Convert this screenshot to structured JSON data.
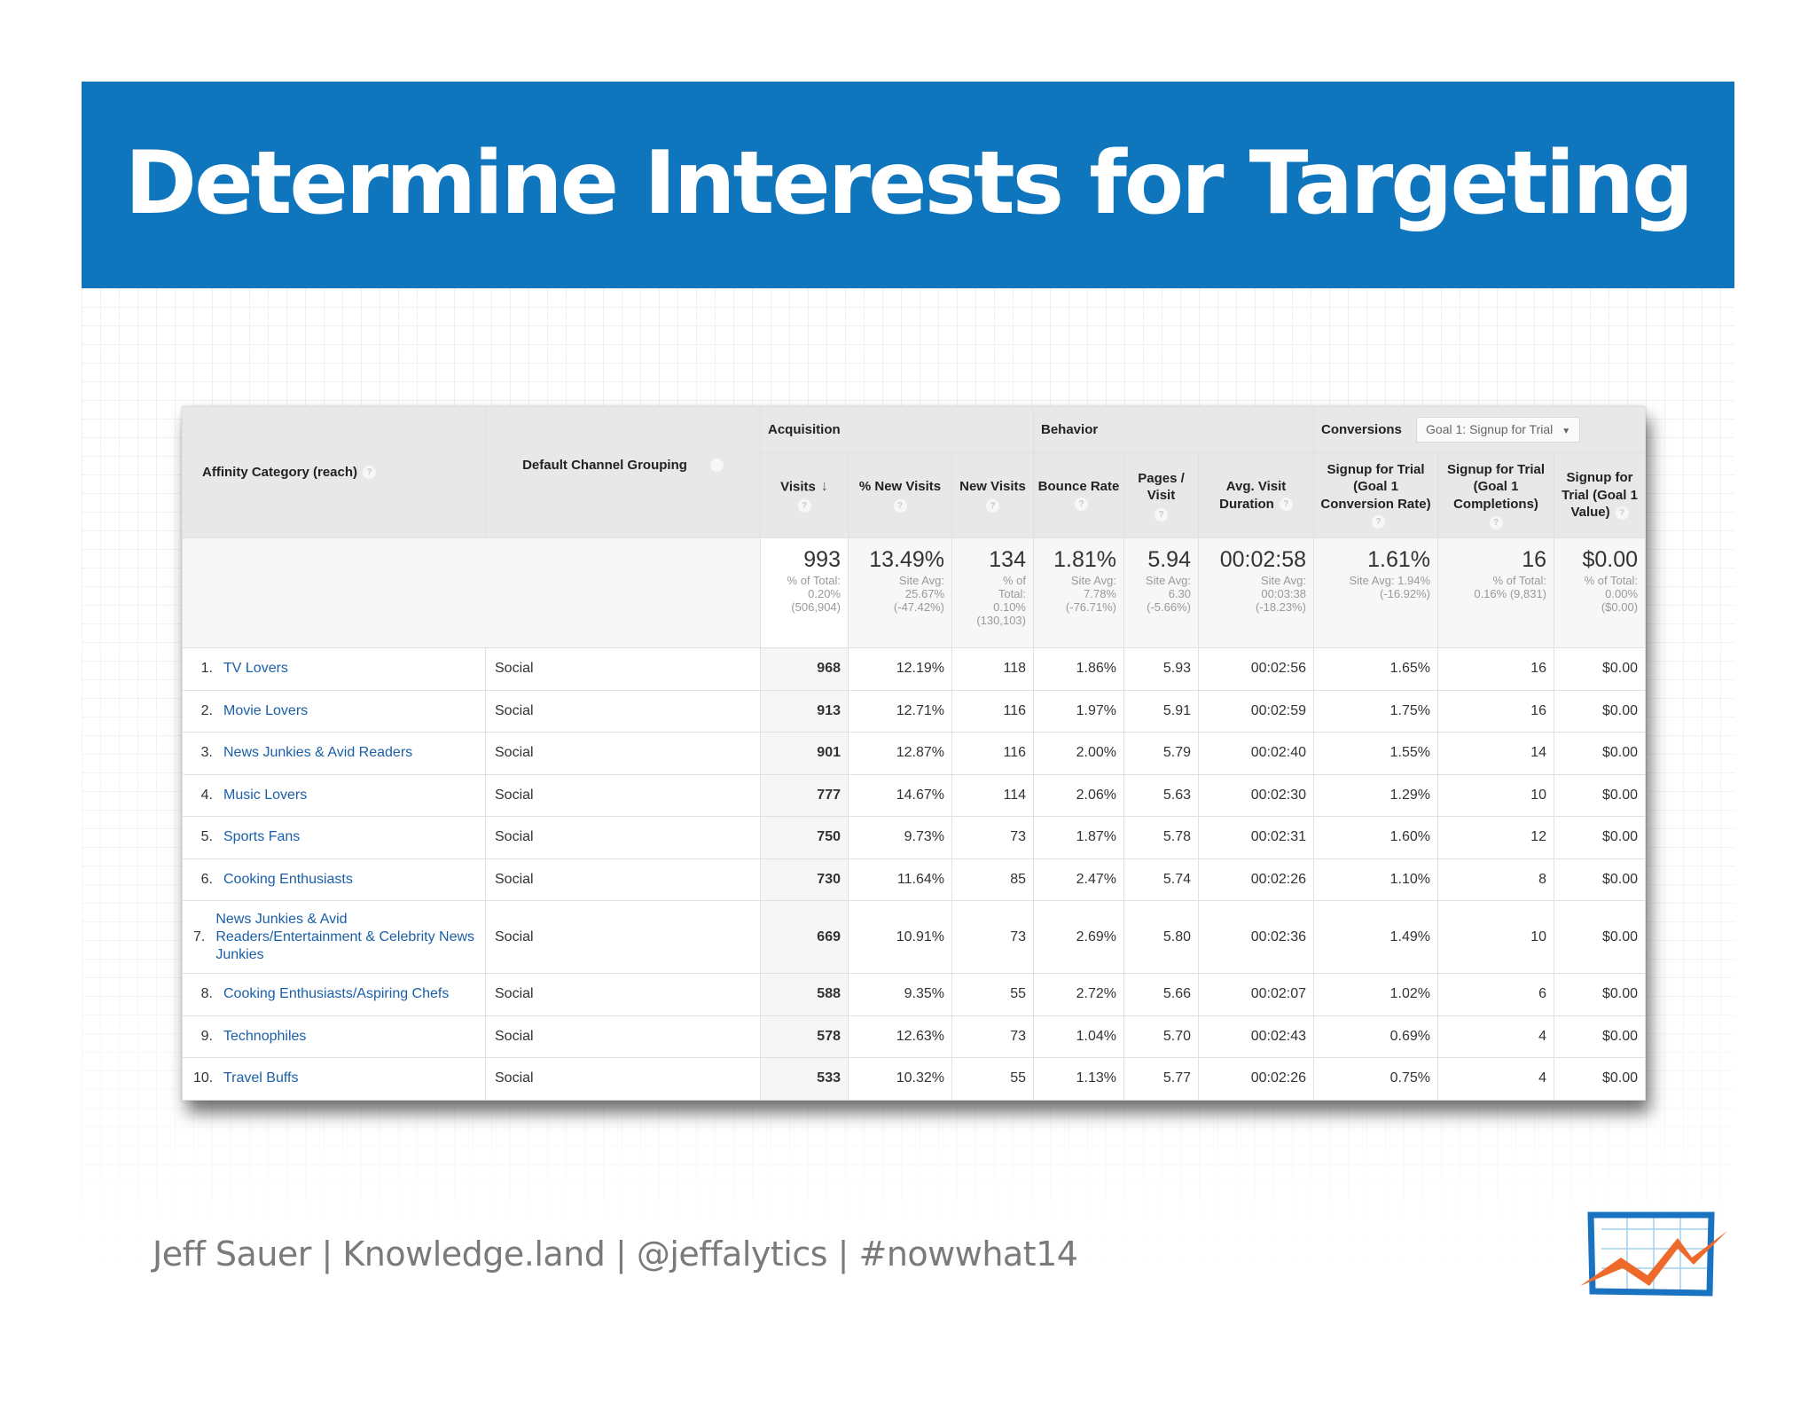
{
  "slide": {
    "title": "Determine Interests for Targeting",
    "footer": "Jeff Sauer | Knowledge.land | @jeffalytics | #nowwhat14",
    "colors": {
      "banner": "#0f75bc",
      "link": "#1a5fa8",
      "logo_blue": "#1a73c0",
      "logo_orange": "#ee6a2b"
    },
    "logo_icon": "chart-trend-icon"
  },
  "report": {
    "groups": {
      "acquisition": "Acquisition",
      "behavior": "Behavior",
      "conversions": "Conversions"
    },
    "goal_select": {
      "value": "Goal 1: Signup for Trial",
      "icon": "caret-down-icon"
    },
    "dims": {
      "affinity": "Affinity Category (reach)",
      "channel": "Default Channel Grouping"
    },
    "metrics": {
      "visits": "Visits",
      "pct_new": "% New Visits",
      "new_visits": "New Visits",
      "bounce": "Bounce Rate",
      "pages": "Pages / Visit",
      "duration": "Avg. Visit Duration",
      "conv_rate": "Signup for Trial (Goal 1 Conversion Rate)",
      "completions": "Signup for Trial (Goal 1 Completions)",
      "value": "Signup for Trial (Goal 1 Value)"
    },
    "help_glyph": "?",
    "sort_glyph": "↓",
    "totals": {
      "visits": {
        "main": "993",
        "sub": "% of Total:\n0.20%\n(506,904)"
      },
      "pct_new": {
        "main": "13.49%",
        "sub": "Site Avg:\n25.67%\n(-47.42%)"
      },
      "new_visits": {
        "main": "134",
        "sub": "% of\nTotal:\n0.10%\n(130,103)"
      },
      "bounce": {
        "main": "1.81%",
        "sub": "Site Avg:\n7.78%\n(-76.71%)"
      },
      "pages": {
        "main": "5.94",
        "sub": "Site Avg:\n6.30\n(-5.66%)"
      },
      "duration": {
        "main": "00:02:58",
        "sub": "Site Avg:\n00:03:38\n(-18.23%)"
      },
      "conv_rate": {
        "main": "1.61%",
        "sub": "Site Avg: 1.94%\n(-16.92%)"
      },
      "completions": {
        "main": "16",
        "sub": "% of Total:\n0.16% (9,831)"
      },
      "value": {
        "main": "$0.00",
        "sub": "% of Total:\n0.00%\n($0.00)"
      }
    },
    "rows": [
      {
        "rank": "1.",
        "name": "TV Lovers",
        "channel": "Social",
        "visits": "968",
        "pct_new": "12.19%",
        "new_visits": "118",
        "bounce": "1.86%",
        "pages": "5.93",
        "duration": "00:02:56",
        "conv_rate": "1.65%",
        "completions": "16",
        "value": "$0.00"
      },
      {
        "rank": "2.",
        "name": "Movie Lovers",
        "channel": "Social",
        "visits": "913",
        "pct_new": "12.71%",
        "new_visits": "116",
        "bounce": "1.97%",
        "pages": "5.91",
        "duration": "00:02:59",
        "conv_rate": "1.75%",
        "completions": "16",
        "value": "$0.00"
      },
      {
        "rank": "3.",
        "name": "News Junkies & Avid Readers",
        "channel": "Social",
        "visits": "901",
        "pct_new": "12.87%",
        "new_visits": "116",
        "bounce": "2.00%",
        "pages": "5.79",
        "duration": "00:02:40",
        "conv_rate": "1.55%",
        "completions": "14",
        "value": "$0.00"
      },
      {
        "rank": "4.",
        "name": "Music Lovers",
        "channel": "Social",
        "visits": "777",
        "pct_new": "14.67%",
        "new_visits": "114",
        "bounce": "2.06%",
        "pages": "5.63",
        "duration": "00:02:30",
        "conv_rate": "1.29%",
        "completions": "10",
        "value": "$0.00"
      },
      {
        "rank": "5.",
        "name": "Sports Fans",
        "channel": "Social",
        "visits": "750",
        "pct_new": "9.73%",
        "new_visits": "73",
        "bounce": "1.87%",
        "pages": "5.78",
        "duration": "00:02:31",
        "conv_rate": "1.60%",
        "completions": "12",
        "value": "$0.00"
      },
      {
        "rank": "6.",
        "name": "Cooking Enthusiasts",
        "channel": "Social",
        "visits": "730",
        "pct_new": "11.64%",
        "new_visits": "85",
        "bounce": "2.47%",
        "pages": "5.74",
        "duration": "00:02:26",
        "conv_rate": "1.10%",
        "completions": "8",
        "value": "$0.00"
      },
      {
        "rank": "7.",
        "name": "News Junkies & Avid Readers/Entertainment & Celebrity News Junkies",
        "channel": "Social",
        "visits": "669",
        "pct_new": "10.91%",
        "new_visits": "73",
        "bounce": "2.69%",
        "pages": "5.80",
        "duration": "00:02:36",
        "conv_rate": "1.49%",
        "completions": "10",
        "value": "$0.00"
      },
      {
        "rank": "8.",
        "name": "Cooking Enthusiasts/Aspiring Chefs",
        "channel": "Social",
        "visits": "588",
        "pct_new": "9.35%",
        "new_visits": "55",
        "bounce": "2.72%",
        "pages": "5.66",
        "duration": "00:02:07",
        "conv_rate": "1.02%",
        "completions": "6",
        "value": "$0.00"
      },
      {
        "rank": "9.",
        "name": "Technophiles",
        "channel": "Social",
        "visits": "578",
        "pct_new": "12.63%",
        "new_visits": "73",
        "bounce": "1.04%",
        "pages": "5.70",
        "duration": "00:02:43",
        "conv_rate": "0.69%",
        "completions": "4",
        "value": "$0.00"
      },
      {
        "rank": "10.",
        "name": "Travel Buffs",
        "channel": "Social",
        "visits": "533",
        "pct_new": "10.32%",
        "new_visits": "55",
        "bounce": "1.13%",
        "pages": "5.77",
        "duration": "00:02:26",
        "conv_rate": "0.75%",
        "completions": "4",
        "value": "$0.00"
      }
    ]
  }
}
